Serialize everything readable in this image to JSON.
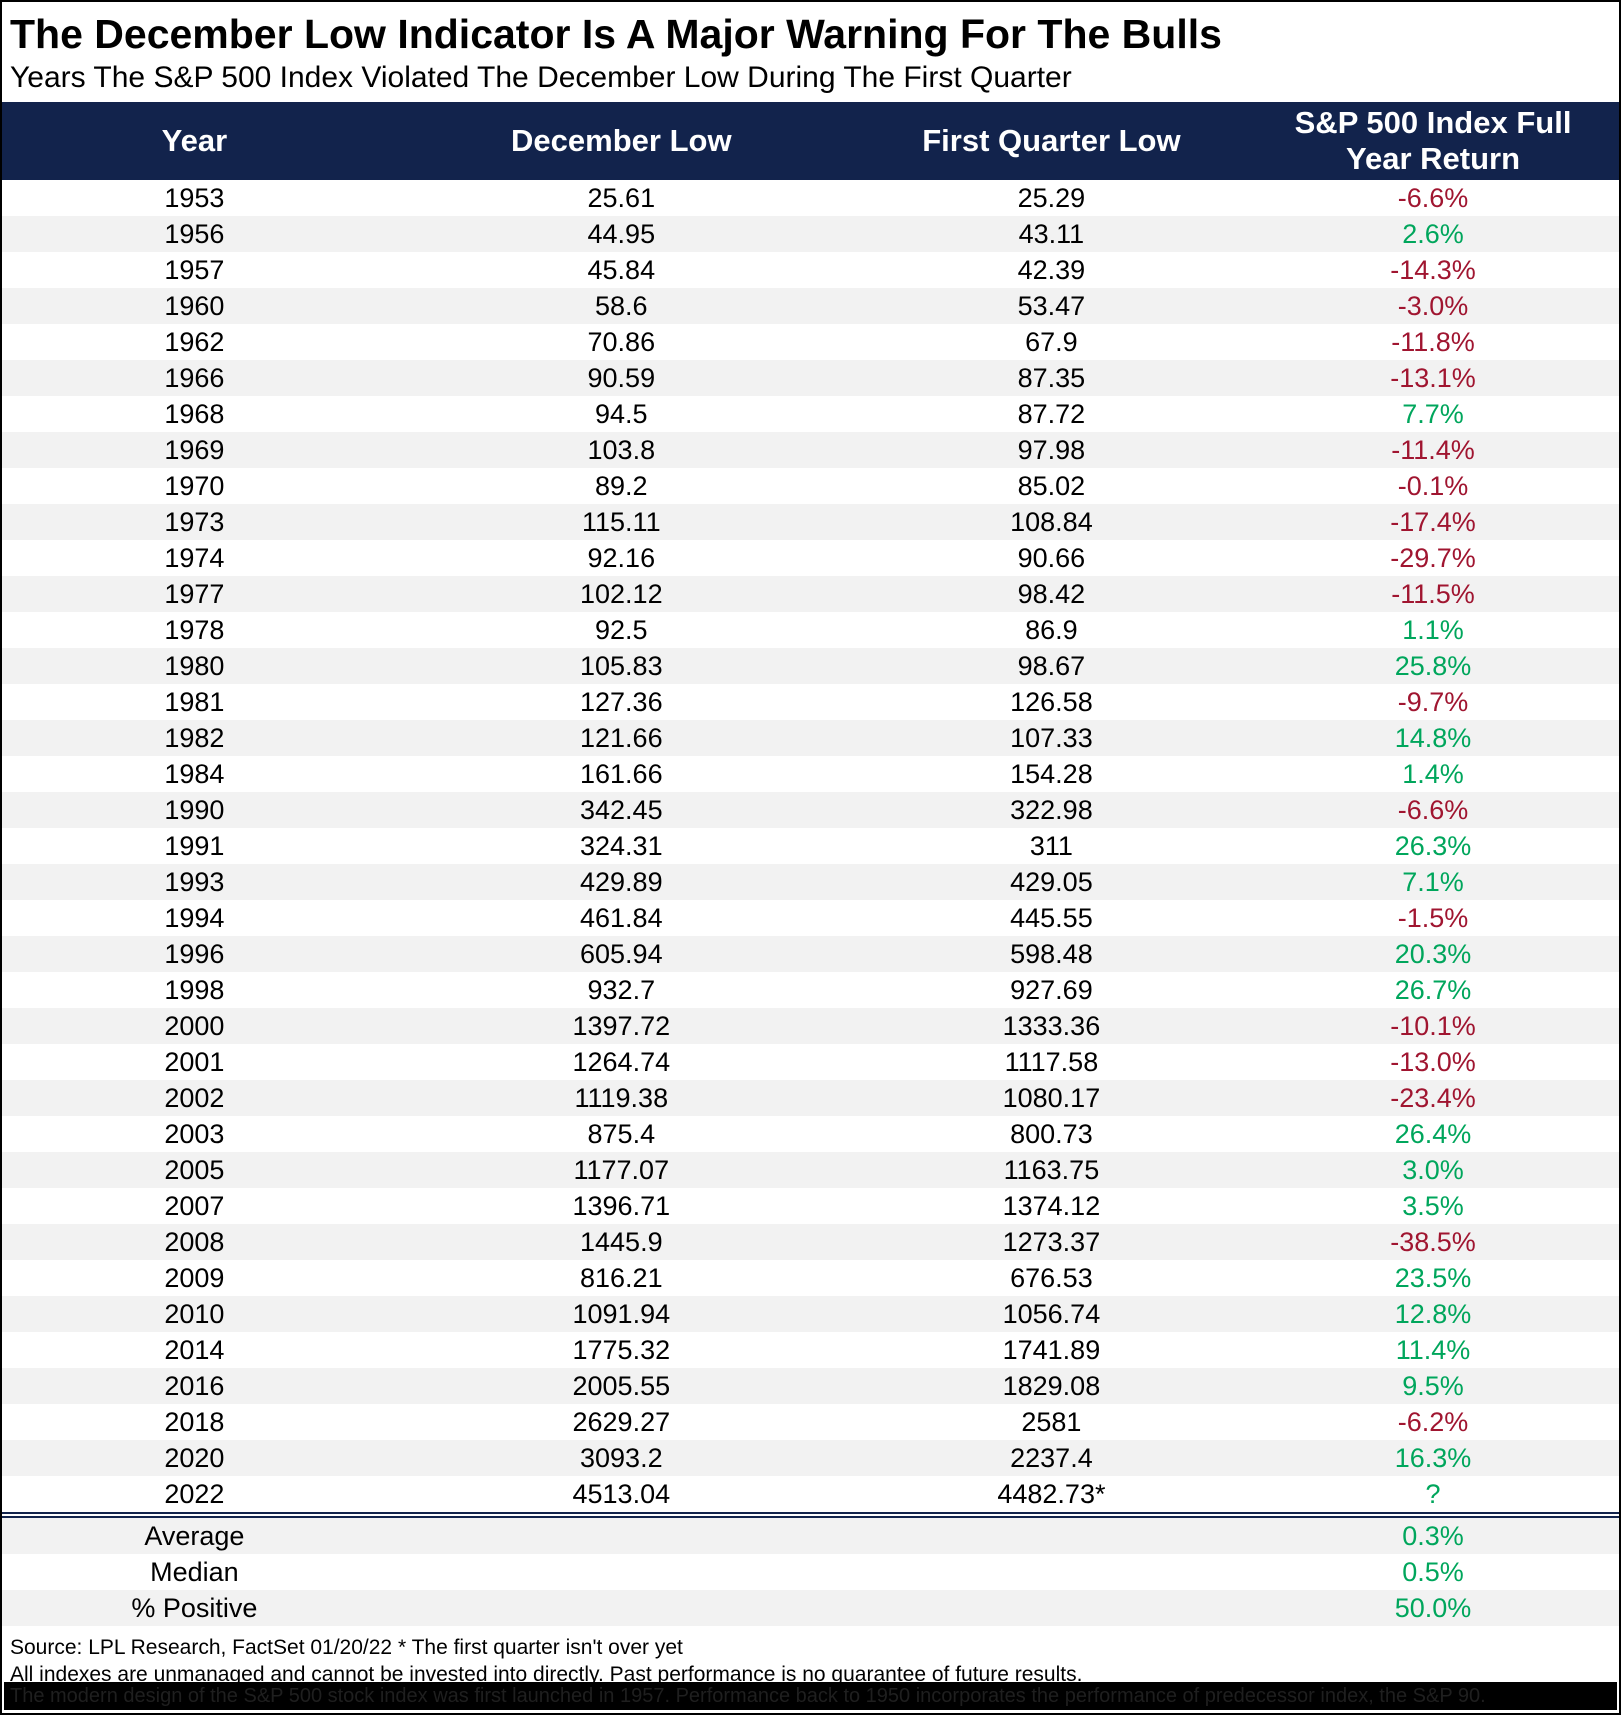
{
  "title": "The December Low Indicator Is A Major Warning For The Bulls",
  "subtitle": "Years The S&P 500 Index Violated The December Low During The First Quarter",
  "colors": {
    "header_bg": "#12234C",
    "positive_green": "#00A65C",
    "negative_red": "#A01530",
    "row_stripe": "#F2F2F2",
    "divider_navy": "#12234C",
    "bottom_bar_bg": "#000000"
  },
  "chart_data": {
    "type": "table",
    "title": "The December Low Indicator Is A Major Warning For The Bulls",
    "subtitle": "Years The S&P 500 Index Violated The December Low During The First Quarter",
    "columns": [
      "Year",
      "December Low",
      "First Quarter Low",
      "S&P 500 Index Full\nYear Return"
    ],
    "rows": [
      {
        "year": "1953",
        "dec_low": "25.61",
        "q1_low": "25.29",
        "ret": "-6.6%",
        "ret_color": "negative"
      },
      {
        "year": "1956",
        "dec_low": "44.95",
        "q1_low": "43.11",
        "ret": "2.6%",
        "ret_color": "positive"
      },
      {
        "year": "1957",
        "dec_low": "45.84",
        "q1_low": "42.39",
        "ret": "-14.3%",
        "ret_color": "negative"
      },
      {
        "year": "1960",
        "dec_low": "58.6",
        "q1_low": "53.47",
        "ret": "-3.0%",
        "ret_color": "negative"
      },
      {
        "year": "1962",
        "dec_low": "70.86",
        "q1_low": "67.9",
        "ret": "-11.8%",
        "ret_color": "negative"
      },
      {
        "year": "1966",
        "dec_low": "90.59",
        "q1_low": "87.35",
        "ret": "-13.1%",
        "ret_color": "negative"
      },
      {
        "year": "1968",
        "dec_low": "94.5",
        "q1_low": "87.72",
        "ret": "7.7%",
        "ret_color": "positive"
      },
      {
        "year": "1969",
        "dec_low": "103.8",
        "q1_low": "97.98",
        "ret": "-11.4%",
        "ret_color": "negative"
      },
      {
        "year": "1970",
        "dec_low": "89.2",
        "q1_low": "85.02",
        "ret": "-0.1%",
        "ret_color": "negative"
      },
      {
        "year": "1973",
        "dec_low": "115.11",
        "q1_low": "108.84",
        "ret": "-17.4%",
        "ret_color": "negative"
      },
      {
        "year": "1974",
        "dec_low": "92.16",
        "q1_low": "90.66",
        "ret": "-29.7%",
        "ret_color": "negative"
      },
      {
        "year": "1977",
        "dec_low": "102.12",
        "q1_low": "98.42",
        "ret": "-11.5%",
        "ret_color": "negative"
      },
      {
        "year": "1978",
        "dec_low": "92.5",
        "q1_low": "86.9",
        "ret": "1.1%",
        "ret_color": "positive"
      },
      {
        "year": "1980",
        "dec_low": "105.83",
        "q1_low": "98.67",
        "ret": "25.8%",
        "ret_color": "positive"
      },
      {
        "year": "1981",
        "dec_low": "127.36",
        "q1_low": "126.58",
        "ret": "-9.7%",
        "ret_color": "negative"
      },
      {
        "year": "1982",
        "dec_low": "121.66",
        "q1_low": "107.33",
        "ret": "14.8%",
        "ret_color": "positive"
      },
      {
        "year": "1984",
        "dec_low": "161.66",
        "q1_low": "154.28",
        "ret": "1.4%",
        "ret_color": "positive"
      },
      {
        "year": "1990",
        "dec_low": "342.45",
        "q1_low": "322.98",
        "ret": "-6.6%",
        "ret_color": "negative"
      },
      {
        "year": "1991",
        "dec_low": "324.31",
        "q1_low": "311",
        "ret": "26.3%",
        "ret_color": "positive"
      },
      {
        "year": "1993",
        "dec_low": "429.89",
        "q1_low": "429.05",
        "ret": "7.1%",
        "ret_color": "positive"
      },
      {
        "year": "1994",
        "dec_low": "461.84",
        "q1_low": "445.55",
        "ret": "-1.5%",
        "ret_color": "negative"
      },
      {
        "year": "1996",
        "dec_low": "605.94",
        "q1_low": "598.48",
        "ret": "20.3%",
        "ret_color": "positive"
      },
      {
        "year": "1998",
        "dec_low": "932.7",
        "q1_low": "927.69",
        "ret": "26.7%",
        "ret_color": "positive"
      },
      {
        "year": "2000",
        "dec_low": "1397.72",
        "q1_low": "1333.36",
        "ret": "-10.1%",
        "ret_color": "negative"
      },
      {
        "year": "2001",
        "dec_low": "1264.74",
        "q1_low": "1117.58",
        "ret": "-13.0%",
        "ret_color": "negative"
      },
      {
        "year": "2002",
        "dec_low": "1119.38",
        "q1_low": "1080.17",
        "ret": "-23.4%",
        "ret_color": "negative"
      },
      {
        "year": "2003",
        "dec_low": "875.4",
        "q1_low": "800.73",
        "ret": "26.4%",
        "ret_color": "positive"
      },
      {
        "year": "2005",
        "dec_low": "1177.07",
        "q1_low": "1163.75",
        "ret": "3.0%",
        "ret_color": "positive"
      },
      {
        "year": "2007",
        "dec_low": "1396.71",
        "q1_low": "1374.12",
        "ret": "3.5%",
        "ret_color": "positive"
      },
      {
        "year": "2008",
        "dec_low": "1445.9",
        "q1_low": "1273.37",
        "ret": "-38.5%",
        "ret_color": "negative"
      },
      {
        "year": "2009",
        "dec_low": "816.21",
        "q1_low": "676.53",
        "ret": "23.5%",
        "ret_color": "positive"
      },
      {
        "year": "2010",
        "dec_low": "1091.94",
        "q1_low": "1056.74",
        "ret": "12.8%",
        "ret_color": "positive"
      },
      {
        "year": "2014",
        "dec_low": "1775.32",
        "q1_low": "1741.89",
        "ret": "11.4%",
        "ret_color": "positive"
      },
      {
        "year": "2016",
        "dec_low": "2005.55",
        "q1_low": "1829.08",
        "ret": "9.5%",
        "ret_color": "positive"
      },
      {
        "year": "2018",
        "dec_low": "2629.27",
        "q1_low": "2581",
        "ret": "-6.2%",
        "ret_color": "negative"
      },
      {
        "year": "2020",
        "dec_low": "3093.2",
        "q1_low": "2237.4",
        "ret": "16.3%",
        "ret_color": "positive"
      },
      {
        "year": "2022",
        "dec_low": "4513.04",
        "q1_low": "4482.73*",
        "ret": "?",
        "ret_color": "positive"
      }
    ],
    "summary": [
      {
        "label": "Average",
        "value": "0.3%",
        "value_color": "positive"
      },
      {
        "label": "Median",
        "value": "0.5%",
        "value_color": "positive"
      },
      {
        "label": "% Positive",
        "value": "50.0%",
        "value_color": "positive"
      }
    ]
  },
  "footer": {
    "source_line": "Source: LPL Research, FactSet 01/20/22    * The first quarter isn't over yet",
    "disclaimer": "All indexes are unmanaged and cannot be invested into directly. Past performance is no guarantee of future results.",
    "bottom_bar": "The modern design of the S&P 500 stock index was first launched in 1957. Performance back to 1950 incorporates the performance of predecessor index, the S&P 90."
  }
}
